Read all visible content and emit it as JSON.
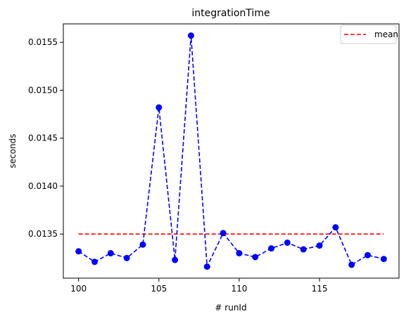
{
  "chart_data": {
    "type": "line",
    "title": "integrationTime",
    "xlabel": "# runId",
    "ylabel": "seconds",
    "x": [
      100,
      101,
      102,
      103,
      104,
      105,
      106,
      107,
      108,
      109,
      110,
      111,
      112,
      113,
      114,
      115,
      116,
      117,
      118,
      119
    ],
    "series": [
      {
        "values": [
          0.01332,
          0.01321,
          0.0133,
          0.01325,
          0.01339,
          0.01482,
          0.01323,
          0.01557,
          0.01316,
          0.01351,
          0.0133,
          0.01326,
          0.01335,
          0.01341,
          0.01334,
          0.01338,
          0.01357,
          0.01318,
          0.01328,
          0.01324
        ],
        "color": "#0000ff",
        "linestyle": "dashed",
        "marker": "circle"
      },
      {
        "name": "mean",
        "x": [
          100,
          119
        ],
        "values": [
          0.0135,
          0.0135
        ],
        "color": "#ff0000",
        "linestyle": "dashed"
      }
    ],
    "xlim": [
      99.05,
      119.95
    ],
    "ylim": [
      0.01304,
      0.015692
    ],
    "xticks": [
      100,
      105,
      110,
      115
    ],
    "yticks": [
      0.0135,
      0.014,
      0.0145,
      0.015,
      0.0155
    ],
    "xtick_labels": [
      "100",
      "105",
      "110",
      "115"
    ],
    "ytick_labels": [
      "0.0135",
      "0.0140",
      "0.0145",
      "0.0150",
      "0.0155"
    ],
    "legend": {
      "position": "top-right",
      "entries": [
        "mean"
      ]
    },
    "grid": false
  }
}
